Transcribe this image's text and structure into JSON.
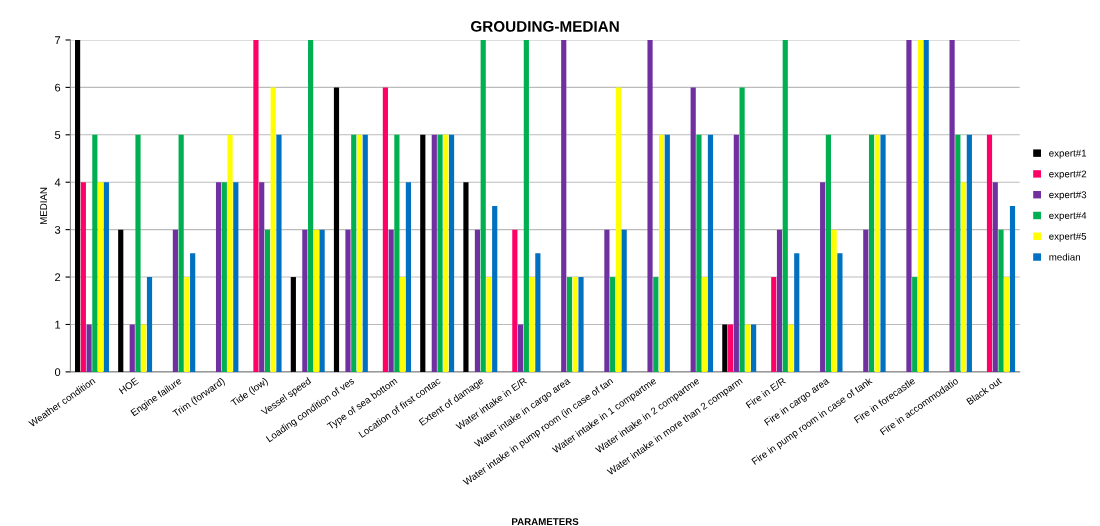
{
  "chart_data": {
    "type": "bar",
    "title": "GROUDING-MEDIAN",
    "xlabel": "PARAMETERS",
    "ylabel": "MEDIAN",
    "categories": [
      "Weather condition",
      "HOE",
      "Engine failure",
      "Trim (forward)",
      "Tide (low)",
      "Vessel speed",
      "Loading condition of ves",
      "Type of sea bottom",
      "Location of first contac",
      "Extent of damage",
      "Water intake in E/R",
      "Water intake in cargo area",
      "Water intake in pump room (in case of tan",
      "Water intake in 1 compartme",
      "Water intake in 2 compartme",
      "Water intake in more than 2 comparm",
      "Fire in E/R",
      "Fire in cargo area",
      "Fire in pump room in case of tank",
      "Fire in forecastle",
      "Fire in accommodatio",
      "Black out"
    ],
    "series": [
      {
        "name": "expert#1",
        "color": "#000000",
        "values": [
          7,
          3,
          null,
          null,
          null,
          2,
          6,
          null,
          5,
          4,
          null,
          null,
          null,
          null,
          null,
          1,
          null,
          null,
          null,
          null,
          null,
          null
        ]
      },
      {
        "name": "expert#2",
        "color": "#ff0066",
        "values": [
          4,
          null,
          null,
          null,
          7,
          null,
          null,
          6,
          null,
          null,
          3,
          null,
          null,
          null,
          null,
          1,
          2,
          null,
          null,
          null,
          null,
          5
        ]
      },
      {
        "name": "expert#3",
        "color": "#7030a0",
        "values": [
          1,
          1,
          3,
          4,
          4,
          3,
          3,
          3,
          5,
          3,
          1,
          7,
          3,
          7,
          6,
          5,
          3,
          4,
          3,
          7,
          7,
          4
        ]
      },
      {
        "name": "expert#4",
        "color": "#00b050",
        "values": [
          5,
          5,
          5,
          4,
          3,
          7,
          5,
          5,
          5,
          7,
          7,
          2,
          2,
          2,
          5,
          6,
          7,
          5,
          5,
          2,
          5,
          3
        ]
      },
      {
        "name": "expert#5",
        "color": "#ffff00",
        "values": [
          4,
          1,
          2,
          5,
          6,
          3,
          5,
          2,
          5,
          2,
          2,
          2,
          6,
          5,
          2,
          1,
          1,
          3,
          5,
          7,
          4,
          2
        ]
      },
      {
        "name": "median",
        "color": "#0070c0",
        "values": [
          4,
          2,
          2.5,
          4,
          5,
          3,
          5,
          4,
          5,
          3.5,
          2.5,
          2,
          3,
          5,
          5,
          1,
          2.5,
          2.5,
          5,
          7,
          5,
          3.5
        ]
      }
    ],
    "ylim": [
      0,
      7
    ],
    "yticks": [
      0,
      1,
      2,
      3,
      4,
      5,
      6,
      7
    ],
    "grid": "y",
    "legend": "right"
  }
}
